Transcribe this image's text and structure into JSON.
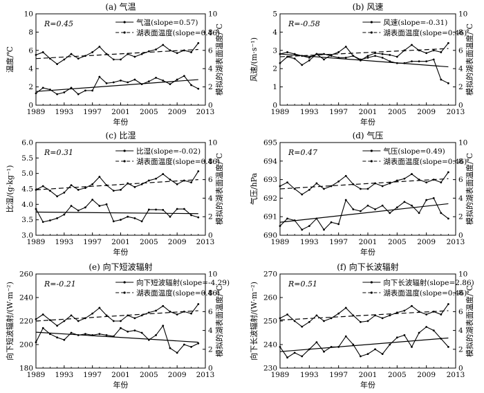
{
  "chart_data": [
    {
      "type": "line",
      "title": "(a) 气温",
      "r_label": "R=0.45",
      "xlabel": "年份",
      "ylabel": "温度/℃",
      "y2label": "模拟的湖表面温度/℃",
      "xlim": [
        1989,
        2013
      ],
      "xticks": [
        1989,
        1993,
        1997,
        2001,
        2005,
        2009,
        2013
      ],
      "ylim": [
        0,
        10
      ],
      "yticks": [
        0,
        2,
        4,
        6,
        8,
        10
      ],
      "y2lim": [
        0,
        10
      ],
      "y2ticks": [
        0,
        2,
        4,
        6,
        8,
        10
      ],
      "series": [
        {
          "name": "气温(slope=0.57)",
          "axis": "left",
          "style": "solid",
          "x": [
            1989,
            1990,
            1991,
            1992,
            1993,
            1994,
            1995,
            1996,
            1997,
            1998,
            1999,
            2000,
            2001,
            2002,
            2003,
            2004,
            2005,
            2006,
            2007,
            2008,
            2009,
            2010,
            2011,
            2012
          ],
          "values": [
            1.3,
            1.9,
            1.7,
            1.2,
            1.4,
            1.9,
            1.2,
            1.6,
            1.6,
            3.1,
            2.4,
            2.5,
            2.7,
            2.5,
            2.8,
            2.3,
            2.6,
            3.0,
            2.7,
            2.3,
            2.8,
            3.2,
            2.2,
            1.8
          ],
          "trend": [
            1.5,
            2.8
          ]
        },
        {
          "name": "湖表面温度(slope=0.46)",
          "axis": "right",
          "style": "dashed",
          "x": [
            1989,
            1990,
            1991,
            1992,
            1993,
            1994,
            1995,
            1996,
            1997,
            1998,
            1999,
            2000,
            2001,
            2002,
            2003,
            2004,
            2005,
            2006,
            2007,
            2008,
            2009,
            2010,
            2011,
            2012
          ],
          "values": [
            5.5,
            5.8,
            5.1,
            4.5,
            5.0,
            5.6,
            5.1,
            5.4,
            5.8,
            6.4,
            5.6,
            5.0,
            5.0,
            5.6,
            5.3,
            5.6,
            5.9,
            6.1,
            6.6,
            6.0,
            5.7,
            6.0,
            5.8,
            6.8
          ],
          "trend": [
            5.1,
            6.1
          ]
        }
      ]
    },
    {
      "type": "line",
      "title": "(b) 风速",
      "r_label": "R=-0.58",
      "xlabel": "年份",
      "ylabel": "风速/(m·s⁻¹)",
      "y2label": "模拟的湖表面温度/℃",
      "xlim": [
        1989,
        2013
      ],
      "xticks": [
        1989,
        1993,
        1997,
        2001,
        2005,
        2009,
        2013
      ],
      "ylim": [
        0,
        5
      ],
      "yticks": [
        0,
        1,
        2,
        3,
        4,
        5
      ],
      "y2lim": [
        0,
        10
      ],
      "y2ticks": [
        0,
        2,
        4,
        6,
        8,
        10
      ],
      "series": [
        {
          "name": "风速(slope=-0.31)",
          "axis": "left",
          "style": "solid",
          "x": [
            1989,
            1990,
            1991,
            1992,
            1993,
            1994,
            1995,
            1996,
            1997,
            1998,
            1999,
            2000,
            2001,
            2002,
            2003,
            2004,
            2005,
            2006,
            2007,
            2008,
            2009,
            2010,
            2011,
            2012
          ],
          "values": [
            2.8,
            2.9,
            2.8,
            2.7,
            2.6,
            2.8,
            2.8,
            2.7,
            2.6,
            2.6,
            2.7,
            2.5,
            2.6,
            2.7,
            2.6,
            2.4,
            2.3,
            2.3,
            2.4,
            2.4,
            2.4,
            2.5,
            1.4,
            1.2
          ],
          "trend": [
            2.8,
            2.1
          ]
        },
        {
          "name": "湖表面温度(slope=0.46)",
          "axis": "right",
          "style": "dashed",
          "x": [
            1989,
            1990,
            1991,
            1992,
            1993,
            1994,
            1995,
            1996,
            1997,
            1998,
            1999,
            2000,
            2001,
            2002,
            2003,
            2004,
            2005,
            2006,
            2007,
            2008,
            2009,
            2010,
            2011,
            2012
          ],
          "values": [
            4.6,
            5.3,
            5.1,
            4.4,
            4.9,
            5.6,
            5.0,
            5.5,
            5.8,
            6.4,
            5.4,
            4.9,
            5.4,
            5.7,
            5.6,
            5.5,
            5.3,
            6.0,
            6.6,
            6.0,
            5.7,
            6.0,
            5.8,
            6.8
          ],
          "trend": [
            5.3,
            6.2
          ]
        }
      ]
    },
    {
      "type": "line",
      "title": "(c) 比湿",
      "r_label": "R=0.31",
      "xlabel": "年份",
      "ylabel": "比湿/(g·kg⁻¹)",
      "y2label": "模拟的湖表面温度/℃",
      "xlim": [
        1989,
        2013
      ],
      "xticks": [
        1989,
        1993,
        1997,
        2001,
        2005,
        2009,
        2013
      ],
      "ylim": [
        3.0,
        6.0
      ],
      "yticks": [
        3.0,
        3.5,
        4.0,
        4.5,
        5.0,
        5.5,
        6.0
      ],
      "y2lim": [
        0,
        10
      ],
      "y2ticks": [
        0,
        2,
        4,
        6,
        8,
        10
      ],
      "series": [
        {
          "name": "比湿(slope=-0.02)",
          "axis": "left",
          "style": "solid",
          "x": [
            1989,
            1990,
            1991,
            1992,
            1993,
            1994,
            1995,
            1996,
            1997,
            1998,
            1999,
            2000,
            2001,
            2002,
            2003,
            2004,
            2005,
            2006,
            2007,
            2008,
            2009,
            2010,
            2011,
            2012
          ],
          "values": [
            3.85,
            3.43,
            3.48,
            3.55,
            3.67,
            3.95,
            3.8,
            3.9,
            4.15,
            3.95,
            4.0,
            3.45,
            3.5,
            3.6,
            3.55,
            3.45,
            3.83,
            3.83,
            3.82,
            3.6,
            3.85,
            3.85,
            3.65,
            3.58
          ],
          "trend": [
            3.75,
            3.7
          ]
        },
        {
          "name": "湖表面温度(slope=0.46)",
          "axis": "right",
          "style": "dashed",
          "x": [
            1989,
            1990,
            1991,
            1992,
            1993,
            1994,
            1995,
            1996,
            1997,
            1998,
            1999,
            2000,
            2001,
            2002,
            2003,
            2004,
            2005,
            2006,
            2007,
            2008,
            2009,
            2010,
            2011,
            2012
          ],
          "values": [
            4.9,
            5.3,
            4.8,
            4.2,
            4.6,
            5.4,
            4.9,
            5.1,
            5.5,
            6.3,
            5.4,
            4.8,
            4.9,
            5.6,
            5.2,
            5.5,
            5.9,
            6.1,
            6.6,
            6.0,
            5.5,
            5.9,
            5.7,
            6.9
          ],
          "trend": [
            4.9,
            6.0
          ]
        }
      ]
    },
    {
      "type": "line",
      "title": "(d) 气压",
      "r_label": "R=0.47",
      "xlabel": "年份",
      "ylabel": "气压/hPa",
      "y2label": "模拟的湖表面温度/℃",
      "xlim": [
        1989,
        2013
      ],
      "xticks": [
        1989,
        1993,
        1997,
        2001,
        2005,
        2009,
        2013
      ],
      "ylim": [
        690,
        695
      ],
      "yticks": [
        690,
        691,
        692,
        693,
        694,
        695
      ],
      "y2lim": [
        0,
        10
      ],
      "y2ticks": [
        0,
        2,
        4,
        6,
        8,
        10
      ],
      "series": [
        {
          "name": "气压(slope=0.49)",
          "axis": "left",
          "style": "solid",
          "x": [
            1989,
            1990,
            1991,
            1992,
            1993,
            1994,
            1995,
            1996,
            1997,
            1998,
            1999,
            2000,
            2001,
            2002,
            2003,
            2004,
            2005,
            2006,
            2007,
            2008,
            2009,
            2010,
            2011,
            2012
          ],
          "values": [
            690.5,
            690.9,
            690.8,
            690.3,
            690.5,
            690.9,
            690.3,
            690.7,
            690.6,
            691.9,
            691.4,
            691.3,
            691.6,
            691.4,
            691.6,
            691.2,
            691.5,
            691.8,
            691.6,
            691.2,
            691.9,
            692.0,
            691.2,
            690.9
          ],
          "trend": [
            690.7,
            691.7
          ]
        },
        {
          "name": "湖表面温度(slope=0.46)",
          "axis": "right",
          "style": "dashed",
          "x": [
            1989,
            1990,
            1991,
            1992,
            1993,
            1994,
            1995,
            1996,
            1997,
            1998,
            1999,
            2000,
            2001,
            2002,
            2003,
            2004,
            2005,
            2006,
            2007,
            2008,
            2009,
            2010,
            2011,
            2012
          ],
          "values": [
            5.3,
            5.7,
            5.0,
            4.4,
            4.9,
            5.6,
            5.0,
            5.3,
            5.8,
            6.4,
            5.5,
            5.0,
            5.0,
            5.6,
            5.3,
            5.6,
            5.9,
            6.1,
            6.6,
            6.0,
            5.7,
            6.0,
            5.7,
            6.8
          ],
          "trend": [
            5.0,
            6.1
          ]
        }
      ]
    },
    {
      "type": "line",
      "title": "(e) 向下短波辐射",
      "r_label": "R=-0.21",
      "xlabel": "年份",
      "ylabel": "向下短波辐射/(W·m⁻²)",
      "y2label": "模拟的湖表面温度/℃",
      "xlim": [
        1989,
        2013
      ],
      "xticks": [
        1989,
        1993,
        1997,
        2001,
        2005,
        2009,
        2013
      ],
      "ylim": [
        180,
        260
      ],
      "yticks": [
        180,
        200,
        220,
        240,
        260
      ],
      "y2lim": [
        0,
        10
      ],
      "y2ticks": [
        0,
        2,
        4,
        6,
        8,
        10
      ],
      "series": [
        {
          "name": "向下短波辐射(slope=-4.29)",
          "axis": "left",
          "style": "solid",
          "x": [
            1989,
            1990,
            1991,
            1992,
            1993,
            1994,
            1995,
            1996,
            1997,
            1998,
            1999,
            2000,
            2001,
            2002,
            2003,
            2004,
            2005,
            2006,
            2007,
            2008,
            2009,
            2010,
            2011,
            2012
          ],
          "values": [
            202,
            214,
            209,
            206,
            204,
            210,
            208,
            209,
            208,
            209,
            208,
            207,
            214,
            211,
            212,
            210,
            204,
            208,
            216,
            197,
            193,
            200,
            198,
            201
          ],
          "trend": [
            210.5,
            202.0
          ]
        },
        {
          "name": "湖表面温度(slope=0.46)",
          "axis": "right",
          "style": "dashed",
          "x": [
            1989,
            1990,
            1991,
            1992,
            1993,
            1994,
            1995,
            1996,
            1997,
            1998,
            1999,
            2000,
            2001,
            2002,
            2003,
            2004,
            2005,
            2006,
            2007,
            2008,
            2009,
            2010,
            2011,
            2012
          ],
          "values": [
            5.2,
            5.7,
            5.1,
            4.5,
            5.0,
            5.6,
            5.0,
            5.3,
            5.8,
            6.4,
            5.6,
            5.0,
            5.0,
            5.6,
            5.3,
            5.6,
            5.9,
            6.1,
            6.6,
            6.0,
            5.7,
            6.0,
            5.8,
            6.8
          ],
          "trend": [
            5.0,
            6.1
          ]
        }
      ]
    },
    {
      "type": "line",
      "title": "(f) 向下长波辐射",
      "r_label": "R=0.51",
      "xlabel": "年份",
      "ylabel": "向下长波辐射/(W·m⁻²)",
      "y2label": "模拟的湖表面温度/℃",
      "xlim": [
        1989,
        2013
      ],
      "xticks": [
        1989,
        1993,
        1997,
        2001,
        2005,
        2009,
        2013
      ],
      "ylim": [
        230,
        270
      ],
      "yticks": [
        230,
        240,
        250,
        260,
        270
      ],
      "y2lim": [
        0,
        10
      ],
      "y2ticks": [
        0,
        2,
        4,
        6,
        8,
        10
      ],
      "series": [
        {
          "name": "向下长波辐射(slope=2.86)",
          "axis": "left",
          "style": "solid",
          "x": [
            1989,
            1990,
            1991,
            1992,
            1993,
            1994,
            1995,
            1996,
            1997,
            1998,
            1999,
            2000,
            2001,
            2002,
            2003,
            2004,
            2005,
            2006,
            2007,
            2008,
            2009,
            2010,
            2011,
            2012
          ],
          "values": [
            239,
            234.5,
            236.5,
            235,
            238,
            241,
            237,
            239,
            239,
            243.5,
            240,
            235,
            236,
            238,
            236,
            240,
            243,
            244,
            239,
            245,
            247.5,
            246,
            242.5,
            239
          ],
          "trend": [
            237.0,
            242.8
          ]
        },
        {
          "name": "湖表面温度(slope=0.46)",
          "axis": "right",
          "style": "dashed",
          "x": [
            1989,
            1990,
            1991,
            1992,
            1993,
            1994,
            1995,
            1996,
            1997,
            1998,
            1999,
            2000,
            2001,
            2002,
            2003,
            2004,
            2005,
            2006,
            2007,
            2008,
            2009,
            2010,
            2011,
            2012
          ],
          "values": [
            5.3,
            5.7,
            5.0,
            4.4,
            4.9,
            5.6,
            5.0,
            5.3,
            5.8,
            6.4,
            5.6,
            4.9,
            5.0,
            5.6,
            5.3,
            5.6,
            5.9,
            6.1,
            6.6,
            6.0,
            5.7,
            6.0,
            5.7,
            6.8
          ],
          "trend": [
            5.1,
            6.1
          ]
        }
      ]
    }
  ]
}
